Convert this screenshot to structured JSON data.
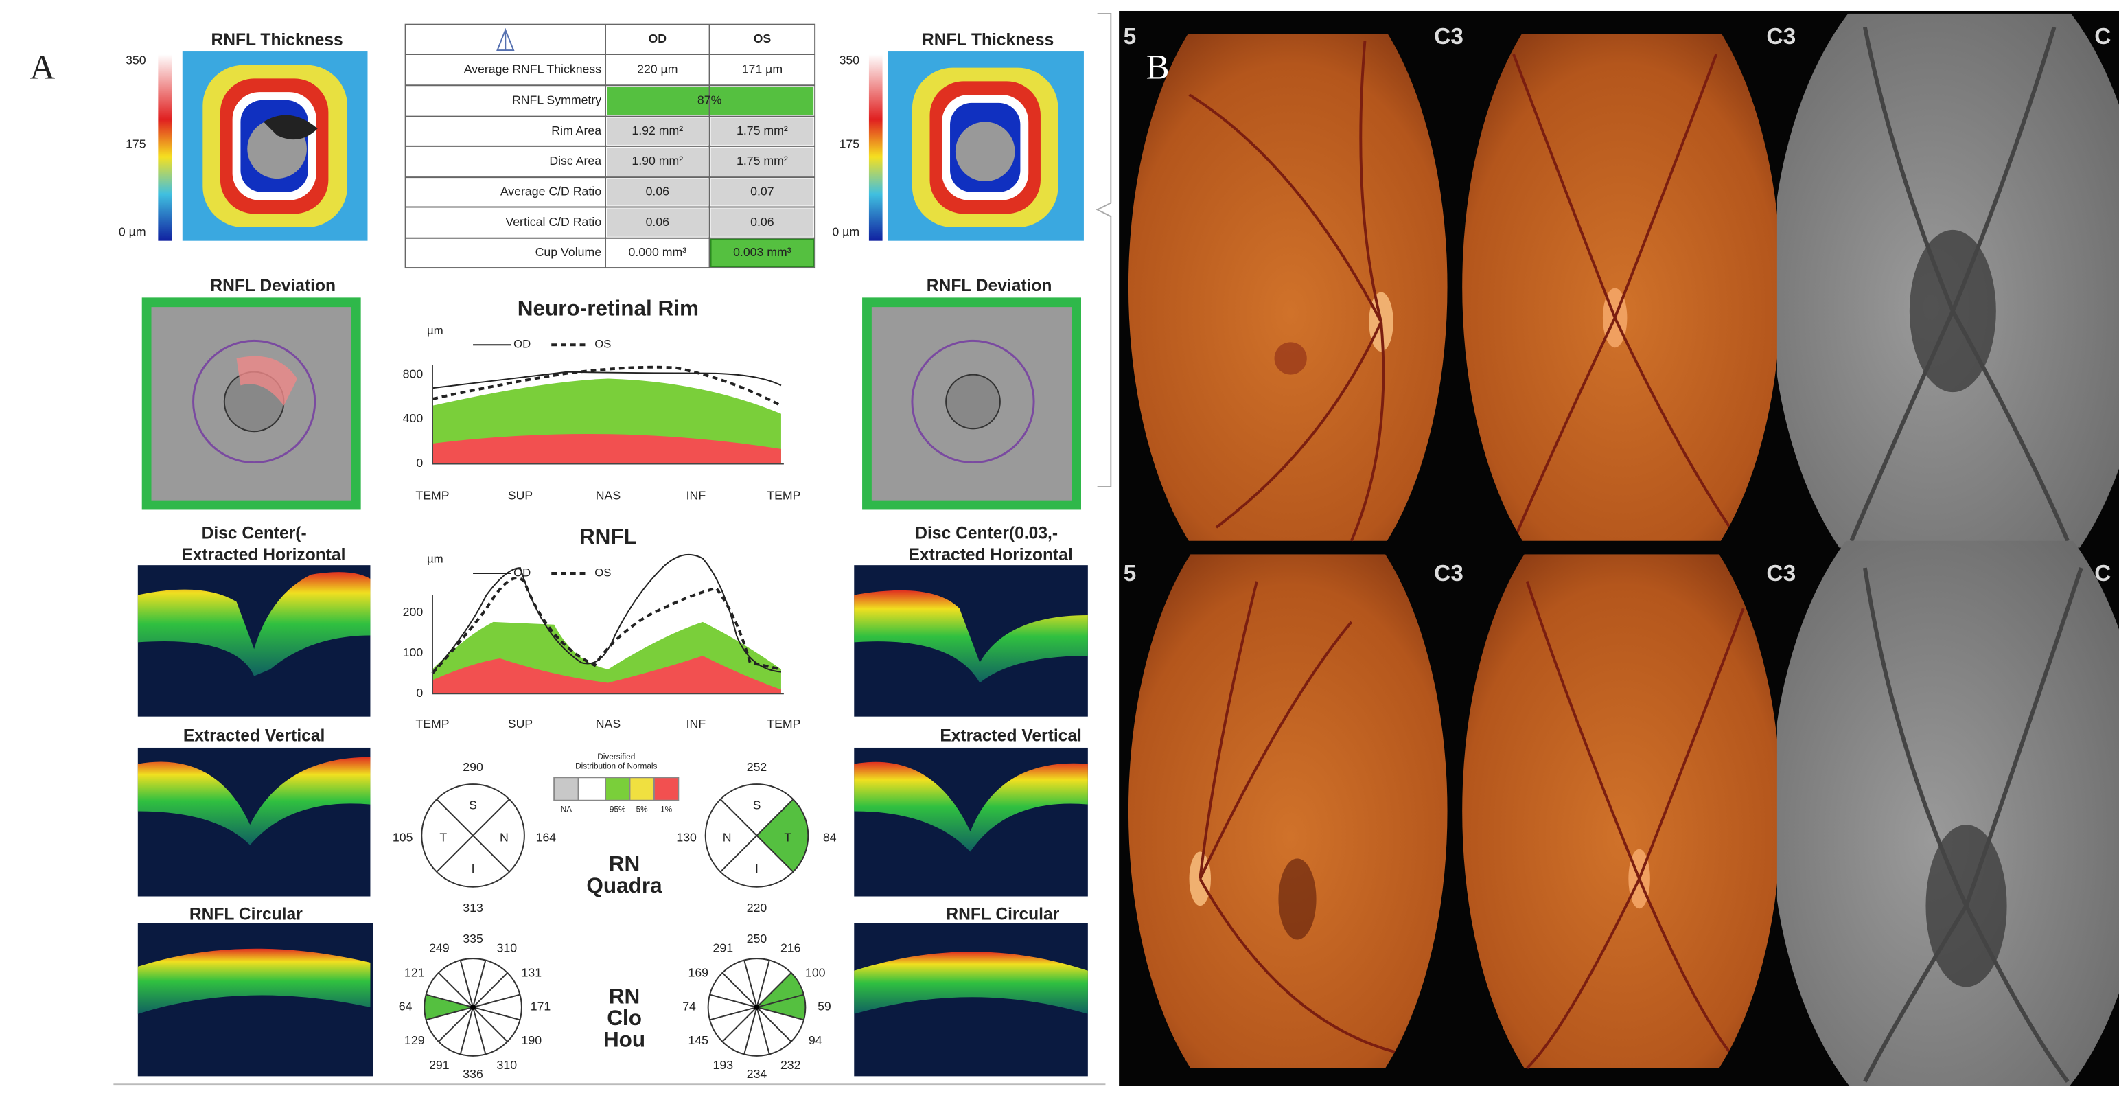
{
  "panel_labels": [
    "A",
    "B"
  ],
  "od": {
    "thickness_title": "RNFL Thickness",
    "scale": [
      "350",
      "175",
      "0 µm"
    ],
    "deviation_title": "RNFL Deviation",
    "horizontal_title": [
      "Disc Center(-",
      "Extracted Horizontal"
    ],
    "vertical_title": "Extracted Vertical",
    "circular_title": "RNFL Circular"
  },
  "os": {
    "thickness_title": "RNFL Thickness",
    "scale": [
      "350",
      "175",
      "0 µm"
    ],
    "deviation_title": "RNFL Deviation",
    "horizontal_title": [
      "Disc Center(0.03,-",
      "Extracted Horizontal"
    ],
    "vertical_title": "Extracted Vertical",
    "circular_title": "RNFL Circular"
  },
  "table": {
    "header": [
      "OD",
      "OS"
    ],
    "rows": [
      [
        "Average RNFL Thickness",
        "220 µm",
        "171 µm"
      ],
      [
        "RNFL Symmetry",
        "87%"
      ],
      [
        "Rim Area",
        "1.92 mm²",
        "1.75 mm²"
      ],
      [
        "Disc Area",
        "1.90 mm²",
        "1.75 mm²"
      ],
      [
        "Average C/D Ratio",
        "0.06",
        "0.07"
      ],
      [
        "Vertical C/D Ratio",
        "0.06",
        "0.06"
      ],
      [
        "Cup Volume",
        "0.000 mm³",
        "0.003 mm³"
      ]
    ]
  },
  "rim_chart": {
    "title": "Neuro-retinal Rim",
    "unit": "µm",
    "legend": [
      "OD",
      "OS"
    ],
    "yticks": [
      "800",
      "400",
      "0"
    ],
    "xlabels": [
      "TEMP",
      "SUP",
      "NAS",
      "INF",
      "TEMP"
    ]
  },
  "rnfl_chart": {
    "title": "RNFL",
    "unit": "µm",
    "legend": [
      "OD",
      "OS"
    ],
    "yticks": [
      "200",
      "100",
      "0"
    ],
    "xlabels": [
      "TEMP",
      "SUP",
      "NAS",
      "INF",
      "TEMP"
    ]
  },
  "normals_legend": {
    "title": [
      "Diversified",
      "Distribution of Normals"
    ],
    "labels": [
      "NA",
      "95%",
      "5%",
      "1%"
    ]
  },
  "quadrants": {
    "od": {
      "values": [
        "290",
        "105",
        "164",
        "313"
      ],
      "letters": [
        "S",
        "T",
        "N",
        "I"
      ]
    },
    "os": {
      "values": [
        "252",
        "130",
        "84",
        "220"
      ],
      "letters": [
        "S",
        "N",
        "T",
        "I"
      ]
    }
  },
  "quadrant_title": [
    "RN",
    "Quadra"
  ],
  "clock": {
    "od": [
      "335",
      "310",
      "131",
      "171",
      "190",
      "310",
      "336",
      "291",
      "129",
      "64",
      "121",
      "249"
    ],
    "os": [
      "250",
      "216",
      "100",
      "59",
      "94",
      "232",
      "234",
      "193",
      "145",
      "74",
      "169",
      "291"
    ]
  },
  "clock_title": [
    "RN",
    "Clo",
    "Hou"
  ],
  "fundus_labels": {
    "top": [
      "5",
      "C3",
      "C3",
      "C"
    ],
    "bottom": [
      "5",
      "C3",
      "C3",
      "C"
    ]
  }
}
